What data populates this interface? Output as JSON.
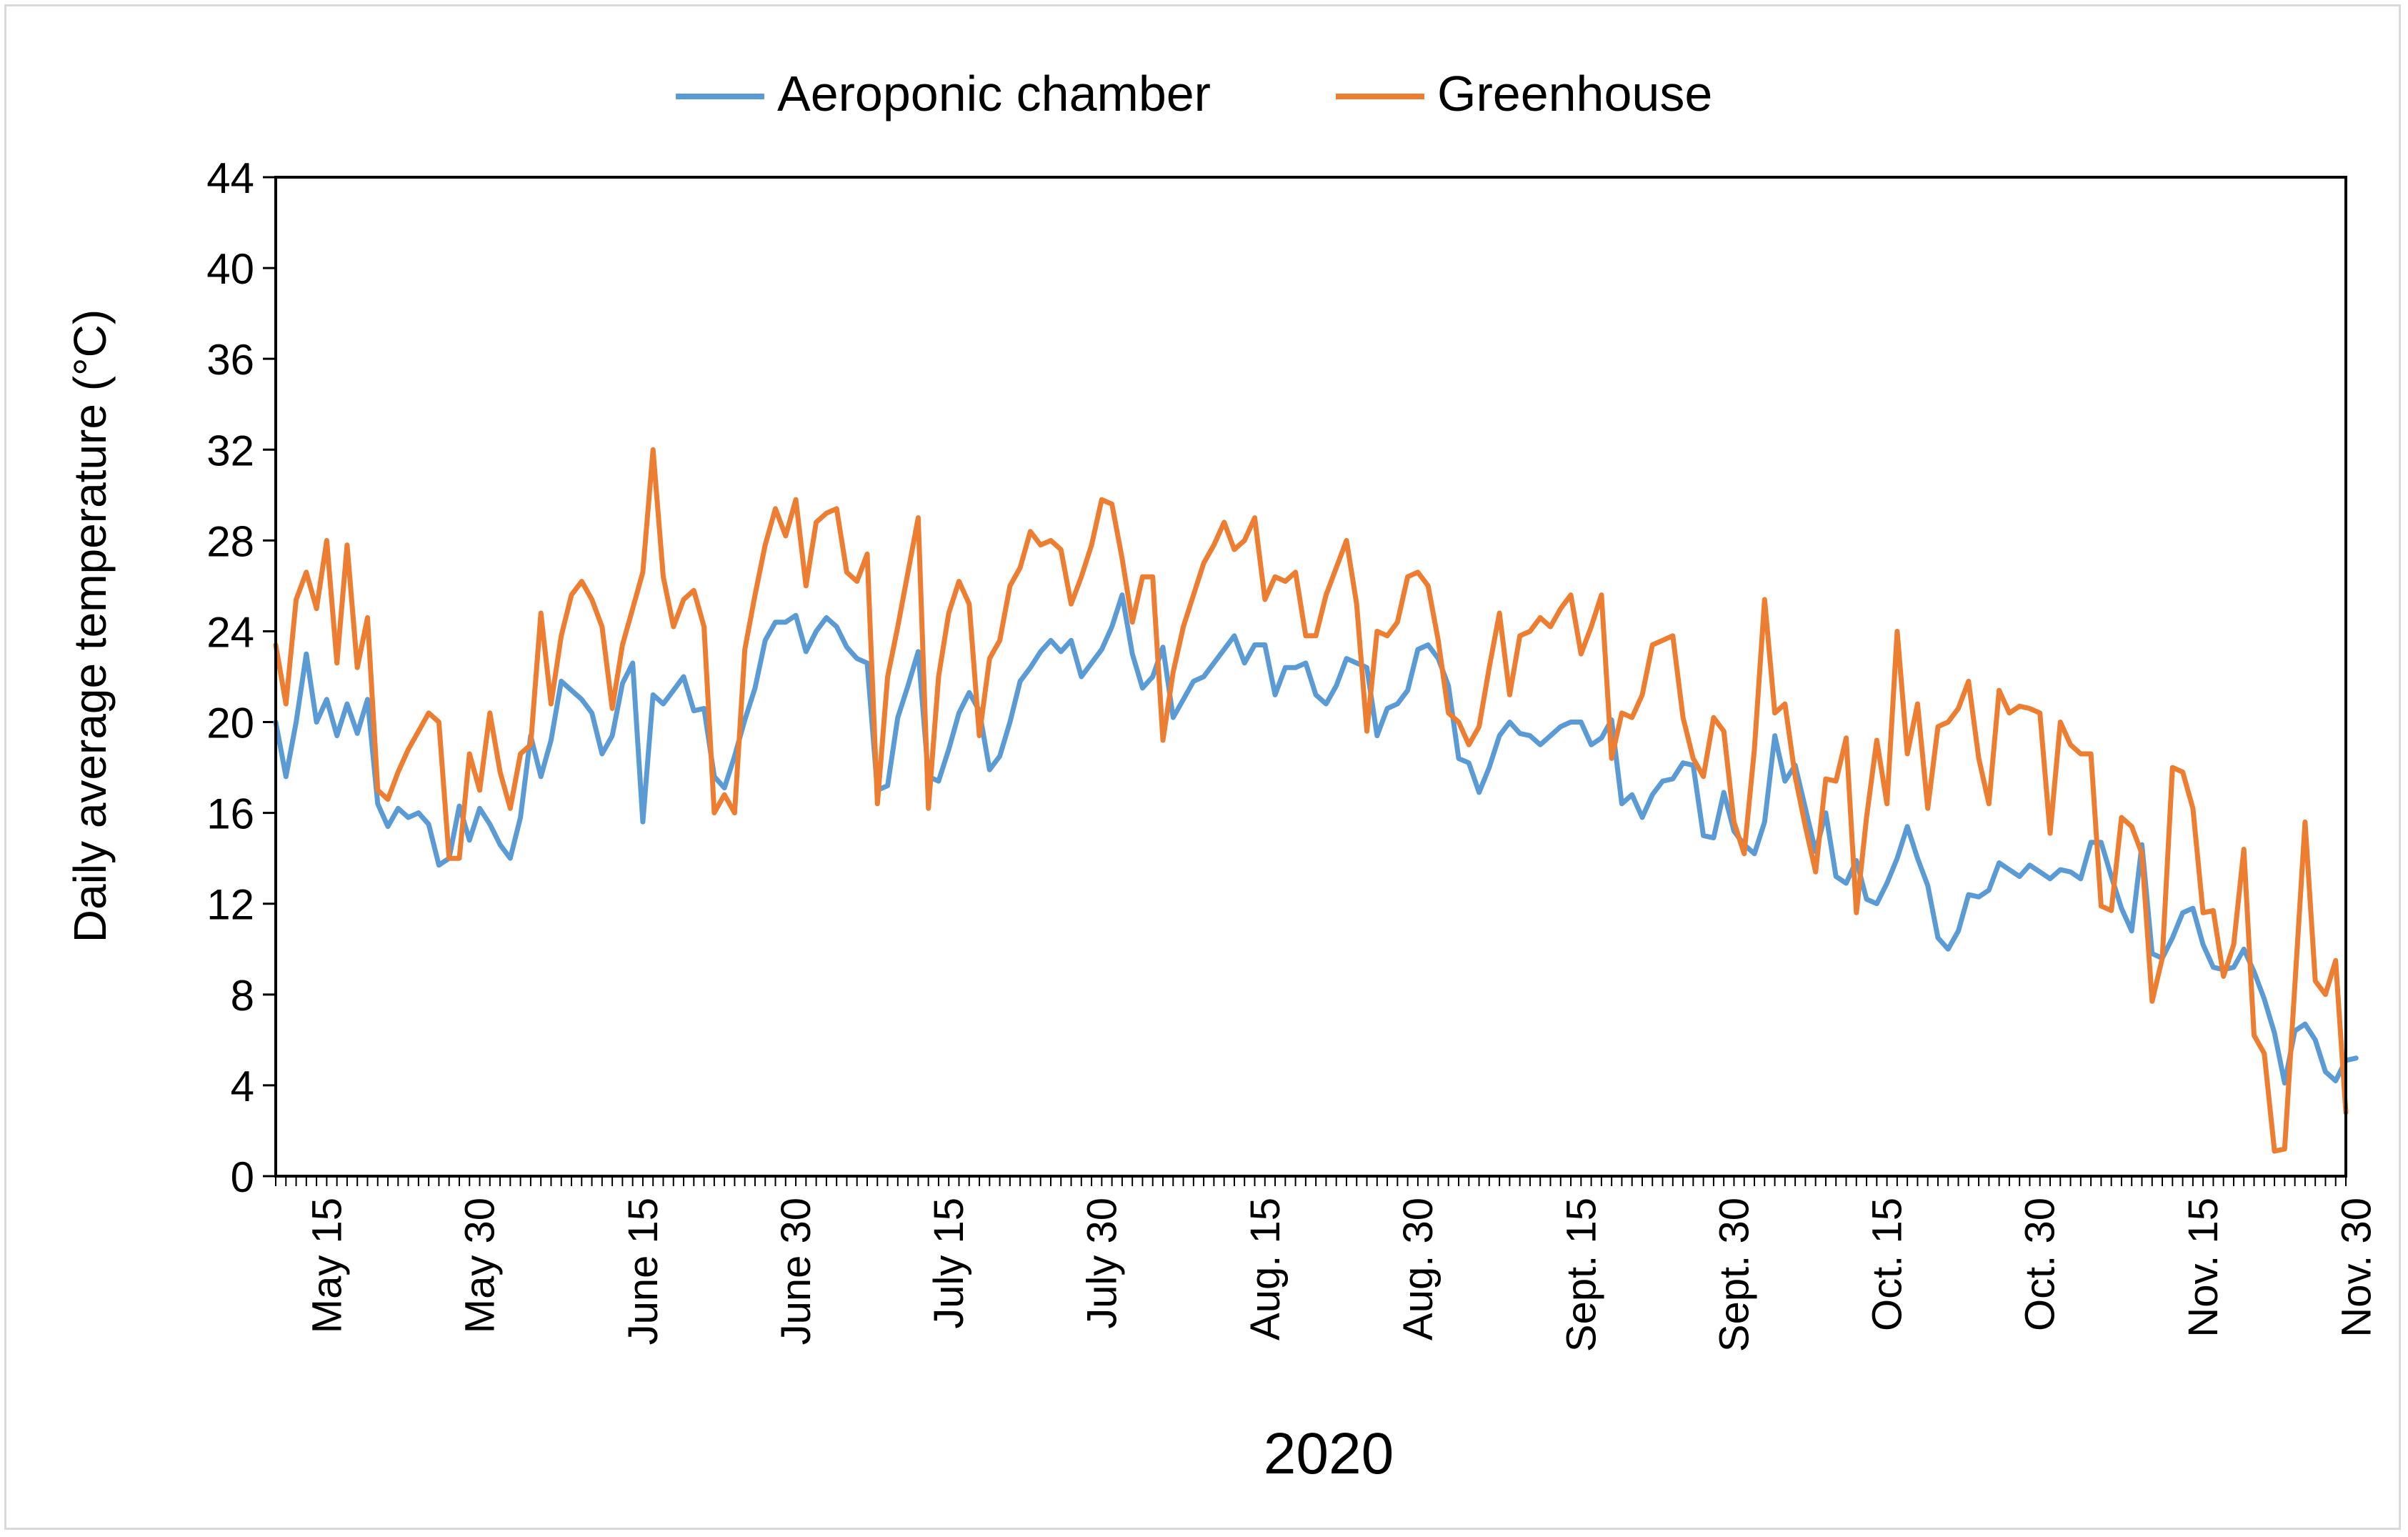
{
  "chart_data": {
    "type": "line",
    "title": "",
    "xlabel": "2020",
    "ylabel": "Daily average temperature  (°C)",
    "ylim": [
      0,
      44
    ],
    "yticks": [
      0,
      4,
      8,
      12,
      16,
      20,
      24,
      28,
      32,
      36,
      40,
      44
    ],
    "xlim": [
      0,
      203
    ],
    "x_tick_labels": [
      {
        "day": 5,
        "label": "May 15"
      },
      {
        "day": 20,
        "label": "May 30"
      },
      {
        "day": 36,
        "label": "June 15"
      },
      {
        "day": 51,
        "label": "June 30"
      },
      {
        "day": 66,
        "label": "July 15"
      },
      {
        "day": 81,
        "label": "July 30"
      },
      {
        "day": 97,
        "label": "Aug. 15"
      },
      {
        "day": 112,
        "label": "Aug. 30"
      },
      {
        "day": 128,
        "label": "Sept. 15"
      },
      {
        "day": 143,
        "label": "Sept. 30"
      },
      {
        "day": 158,
        "label": "Oct. 15"
      },
      {
        "day": 173,
        "label": "Oct. 30"
      },
      {
        "day": 189,
        "label": "Nov. 15"
      },
      {
        "day": 204,
        "label": "Nov. 30"
      }
    ],
    "legend_position": "top-center",
    "grid": false,
    "series": [
      {
        "name": "Aeroponic chamber",
        "color": "#5b9bd5",
        "values": [
          20,
          17.6,
          20,
          23,
          20,
          21,
          19.4,
          20.8,
          19.5,
          21,
          16.4,
          15.4,
          16.2,
          15.8,
          16,
          15.5,
          13.7,
          14,
          16.3,
          14.8,
          16.2,
          15.5,
          14.6,
          14,
          15.8,
          19.4,
          17.6,
          19.2,
          21.8,
          21.4,
          21,
          20.4,
          18.6,
          19.4,
          21.7,
          22.6,
          15.6,
          21.2,
          20.8,
          21.4,
          22,
          20.5,
          20.6,
          17.6,
          17.1,
          18.5,
          20.1,
          21.5,
          23.6,
          24.4,
          24.4,
          24.7,
          23.1,
          24,
          24.6,
          24.2,
          23.3,
          22.8,
          22.6,
          17,
          17.2,
          20.2,
          21.6,
          23.1,
          17.6,
          17.4,
          18.8,
          20.4,
          21.3,
          20.5,
          17.9,
          18.5,
          20,
          21.8,
          22.4,
          23.1,
          23.6,
          23.1,
          23.6,
          22,
          22.6,
          23.2,
          24.2,
          25.6,
          23,
          21.5,
          22,
          23.3,
          20.2,
          21,
          21.8,
          22,
          22.6,
          23.2,
          23.8,
          22.6,
          23.4,
          23.4,
          21.2,
          22.4,
          22.4,
          22.6,
          21.2,
          20.8,
          21.6,
          22.8,
          22.6,
          22.4,
          19.4,
          20.6,
          20.8,
          21.4,
          23.2,
          23.4,
          22.8,
          21.6,
          18.4,
          18.2,
          16.9,
          18,
          19.4,
          20,
          19.5,
          19.4,
          19,
          19.4,
          19.8,
          20,
          20,
          19,
          19.3,
          20.1,
          16.4,
          16.8,
          15.8,
          16.8,
          17.4,
          17.5,
          18.2,
          18.1,
          15,
          14.9,
          16.9,
          15.2,
          14.6,
          14.2,
          15.6,
          19.4,
          17.4,
          18.1,
          16.2,
          14.3,
          16,
          13.2,
          12.9,
          13.9,
          12.2,
          12,
          12.9,
          14,
          15.4,
          14,
          12.8,
          10.5,
          10,
          10.8,
          12.4,
          12.3,
          12.6,
          13.8,
          13.5,
          13.2,
          13.7,
          13.4,
          13.1,
          13.5,
          13.4,
          13.1,
          14.7,
          14.7,
          13.2,
          11.8,
          10.8,
          14.6,
          9.8,
          9.6,
          10.5,
          11.6,
          11.8,
          10.2,
          9.2,
          9.1,
          9.2,
          10,
          9,
          7.8,
          6.3,
          4.1,
          6.4,
          6.7,
          6,
          4.6,
          4.2,
          5.1,
          5.2
        ]
      },
      {
        "name": "Greenhouse",
        "color": "#ed7d31",
        "values": [
          23.4,
          20.8,
          25.4,
          26.6,
          25,
          28,
          22.6,
          27.8,
          22.4,
          24.6,
          17,
          16.6,
          17.8,
          18.8,
          19.6,
          20.4,
          20,
          14,
          14,
          18.6,
          17,
          20.4,
          17.8,
          16.2,
          18.6,
          19,
          24.8,
          20.8,
          23.8,
          25.6,
          26.2,
          25.4,
          24.2,
          20.6,
          23.4,
          25,
          26.6,
          32,
          26.4,
          24.2,
          25.4,
          25.8,
          24.2,
          16,
          16.8,
          16,
          23.2,
          25.6,
          27.8,
          29.4,
          28.2,
          29.8,
          26,
          28.8,
          29.2,
          29.4,
          26.6,
          26.2,
          27.4,
          16.4,
          22,
          24.2,
          26.6,
          29,
          16.2,
          22,
          24.8,
          26.2,
          25.2,
          19.4,
          22.8,
          23.6,
          26,
          26.8,
          28.4,
          27.8,
          28,
          27.6,
          25.2,
          26.4,
          27.8,
          29.8,
          29.6,
          27.2,
          24.4,
          26.4,
          26.4,
          19.2,
          22.2,
          24.2,
          25.6,
          27,
          27.8,
          28.8,
          27.6,
          28,
          29,
          25.4,
          26.4,
          26.2,
          26.6,
          23.8,
          23.8,
          25.6,
          26.8,
          28,
          25.2,
          19.6,
          24,
          23.8,
          24.4,
          26.4,
          26.6,
          26,
          23.6,
          20.4,
          20,
          19,
          19.8,
          22.4,
          24.8,
          21.2,
          23.8,
          24,
          24.6,
          24.2,
          25,
          25.6,
          23,
          24.2,
          25.6,
          18.4,
          20.4,
          20.2,
          21.2,
          23.4,
          23.6,
          23.8,
          20.2,
          18.4,
          17.6,
          20.2,
          19.6,
          15.6,
          14.2,
          18.8,
          25.4,
          20.4,
          20.8,
          17.6,
          15.4,
          13.4,
          17.5,
          17.4,
          19.3,
          11.6,
          15.8,
          19.2,
          16.4,
          24,
          18.6,
          20.8,
          16.2,
          19.8,
          20,
          20.6,
          21.8,
          18.4,
          16.4,
          21.4,
          20.4,
          20.7,
          20.6,
          20.4,
          15.1,
          20,
          19,
          18.6,
          18.6,
          11.9,
          11.7,
          15.8,
          15.4,
          14.2,
          7.7,
          9.6,
          18,
          17.8,
          16.2,
          11.6,
          11.7,
          8.8,
          10.2,
          14.4,
          6.2,
          5.4,
          1.1,
          1.2,
          8.4,
          15.6,
          8.6,
          8,
          9.5,
          2.8
        ]
      }
    ]
  }
}
